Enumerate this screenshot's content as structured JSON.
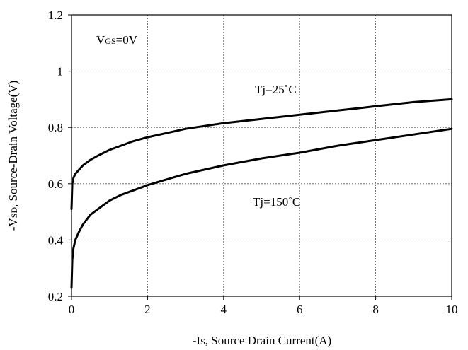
{
  "chart_data": {
    "type": "line",
    "xlabel_prefix": "-I",
    "xlabel_sub": "S",
    "xlabel_rest": ", Source Drain Current(A)",
    "ylabel_prefix": "-V",
    "ylabel_sub": "SD",
    "ylabel_rest": ", Source-Drain Voltage(V)",
    "xlim": [
      0,
      10
    ],
    "ylim": [
      0.2,
      1.2
    ],
    "x_ticks": [
      "0",
      "2",
      "4",
      "6",
      "8",
      "10"
    ],
    "y_ticks": [
      "0.2",
      "0.4",
      "0.6",
      "0.8",
      "1",
      "1.2"
    ],
    "grid": true,
    "condition_prefix": "V",
    "condition_sub": "GS",
    "condition_rest": "=0V",
    "series": [
      {
        "name": "Tj=25˚C",
        "points": [
          [
            0,
            0.51
          ],
          [
            0.02,
            0.6
          ],
          [
            0.05,
            0.62
          ],
          [
            0.1,
            0.635
          ],
          [
            0.2,
            0.65
          ],
          [
            0.3,
            0.665
          ],
          [
            0.5,
            0.685
          ],
          [
            0.7,
            0.7
          ],
          [
            1.0,
            0.72
          ],
          [
            1.3,
            0.735
          ],
          [
            1.6,
            0.75
          ],
          [
            2.0,
            0.765
          ],
          [
            2.5,
            0.78
          ],
          [
            3.0,
            0.795
          ],
          [
            3.5,
            0.805
          ],
          [
            4.0,
            0.815
          ],
          [
            5.0,
            0.83
          ],
          [
            6.0,
            0.845
          ],
          [
            7.0,
            0.86
          ],
          [
            8.0,
            0.875
          ],
          [
            9.0,
            0.89
          ],
          [
            10.0,
            0.9
          ]
        ]
      },
      {
        "name": "Tj=150˚C",
        "points": [
          [
            0,
            0.23
          ],
          [
            0.02,
            0.33
          ],
          [
            0.05,
            0.37
          ],
          [
            0.1,
            0.4
          ],
          [
            0.2,
            0.43
          ],
          [
            0.3,
            0.455
          ],
          [
            0.5,
            0.49
          ],
          [
            0.7,
            0.51
          ],
          [
            1.0,
            0.54
          ],
          [
            1.3,
            0.56
          ],
          [
            1.6,
            0.575
          ],
          [
            2.0,
            0.595
          ],
          [
            2.5,
            0.615
          ],
          [
            3.0,
            0.635
          ],
          [
            3.5,
            0.65
          ],
          [
            4.0,
            0.665
          ],
          [
            5.0,
            0.69
          ],
          [
            6.0,
            0.71
          ],
          [
            7.0,
            0.735
          ],
          [
            8.0,
            0.755
          ],
          [
            9.0,
            0.775
          ],
          [
            10.0,
            0.795
          ]
        ]
      }
    ]
  }
}
